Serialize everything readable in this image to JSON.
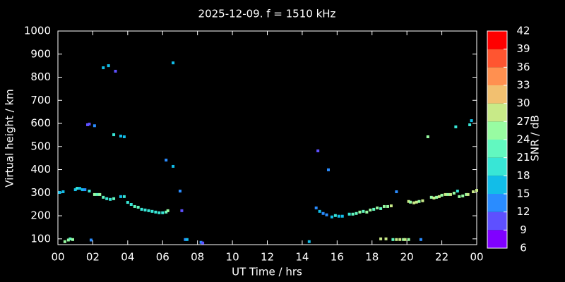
{
  "chart_data": {
    "type": "scatter",
    "title": "2025-12-09. f = 1510 kHz",
    "xlabel": "UT Time / hrs",
    "ylabel": "Virtual height / km",
    "xlim": [
      0,
      24
    ],
    "ylim": [
      75,
      1000
    ],
    "xticks": [
      {
        "value": 0,
        "label": "00"
      },
      {
        "value": 2,
        "label": "02"
      },
      {
        "value": 4,
        "label": "04"
      },
      {
        "value": 6,
        "label": "06"
      },
      {
        "value": 8,
        "label": "08"
      },
      10,
      12,
      14,
      16,
      18,
      20,
      22,
      {
        "value": 24,
        "label": "00"
      }
    ],
    "yticks": [
      100,
      200,
      300,
      400,
      500,
      600,
      700,
      800,
      900,
      1000
    ],
    "x": [
      0.1,
      0.3,
      0.4,
      0.6,
      0.7,
      0.85,
      1.0,
      1.1,
      1.25,
      1.4,
      1.55,
      1.7,
      1.8,
      1.9,
      2.1,
      1.8,
      2.1,
      2.25,
      2.4,
      2.6,
      2.9,
      3.3,
      2.6,
      2.8,
      3.0,
      3.2,
      3.2,
      3.6,
      3.8,
      3.6,
      3.8,
      4.0,
      4.2,
      4.4,
      4.6,
      4.8,
      5.0,
      5.2,
      5.4,
      5.6,
      5.8,
      6.0,
      6.2,
      6.3,
      6.2,
      6.6,
      6.6,
      7.0,
      7.1,
      7.3,
      7.4,
      8.2,
      8.3,
      14.4,
      14.9,
      15.5,
      14.8,
      15.0,
      15.2,
      15.4,
      15.7,
      15.9,
      16.1,
      16.3,
      16.7,
      16.9,
      17.1,
      17.3,
      17.5,
      17.7,
      17.9,
      18.1,
      18.3,
      18.5,
      18.7,
      18.9,
      19.1,
      18.5,
      18.8,
      19.2,
      19.4,
      19.4,
      19.6,
      19.8,
      19.9,
      20.1,
      20.1,
      20.2,
      20.4,
      20.55,
      20.7,
      20.9,
      20.8,
      21.2,
      21.4,
      21.55,
      21.7,
      21.85,
      22.0,
      22.2,
      22.35,
      22.5,
      22.7,
      22.8,
      22.9,
      23.0,
      23.2,
      23.4,
      23.6,
      23.7,
      23.5,
      23.8,
      24.0
    ],
    "y": [
      301,
      304,
      88,
      95,
      100,
      97,
      313,
      319,
      319,
      313,
      313,
      594,
      597,
      95,
      590,
      307,
      292,
      292,
      292,
      841,
      850,
      826,
      280,
      274,
      271,
      274,
      551,
      545,
      542,
      283,
      283,
      258,
      249,
      240,
      237,
      228,
      225,
      222,
      219,
      216,
      213,
      213,
      216,
      222,
      441,
      414,
      862,
      307,
      222,
      97,
      97,
      85,
      82,
      88,
      481,
      399,
      234,
      219,
      210,
      204,
      195,
      201,
      198,
      198,
      207,
      207,
      210,
      216,
      219,
      216,
      225,
      228,
      234,
      231,
      240,
      240,
      243,
      100,
      100,
      97,
      304,
      97,
      97,
      97,
      97,
      97,
      262,
      259,
      256,
      259,
      262,
      265,
      97,
      542,
      280,
      277,
      280,
      283,
      289,
      292,
      292,
      292,
      298,
      585,
      307,
      283,
      286,
      292,
      594,
      612,
      292,
      304,
      310
    ],
    "snr": [
      16,
      16,
      25,
      25,
      22,
      25,
      16,
      19,
      16,
      16,
      13,
      10,
      10,
      13,
      13,
      19,
      25,
      22,
      25,
      16,
      16,
      10,
      22,
      19,
      19,
      22,
      19,
      16,
      16,
      16,
      19,
      19,
      19,
      22,
      22,
      19,
      19,
      19,
      19,
      19,
      19,
      19,
      22,
      25,
      13,
      16,
      16,
      13,
      10,
      13,
      16,
      13,
      10,
      16,
      10,
      13,
      13,
      16,
      13,
      13,
      16,
      19,
      16,
      16,
      19,
      22,
      22,
      25,
      22,
      25,
      25,
      22,
      25,
      22,
      25,
      25,
      28,
      28,
      28,
      22,
      13,
      28,
      28,
      25,
      28,
      25,
      28,
      25,
      28,
      28,
      25,
      28,
      13,
      25,
      25,
      28,
      25,
      28,
      25,
      28,
      25,
      28,
      25,
      19,
      19,
      25,
      25,
      25,
      19,
      16,
      28,
      28,
      28
    ],
    "colorbar": {
      "label": "SNR / dB",
      "clim": [
        6,
        42
      ],
      "ticks": [
        6,
        9,
        12,
        15,
        18,
        21,
        24,
        27,
        30,
        33,
        36,
        39,
        42
      ],
      "colors": [
        "#8000ff",
        "#5e50ff",
        "#2a8cff",
        "#12bde8",
        "#38e6d6",
        "#62f8c0",
        "#98fca2",
        "#c8ea88",
        "#f2c070",
        "#ff9050",
        "#ff5530",
        "#ff0000"
      ]
    }
  }
}
